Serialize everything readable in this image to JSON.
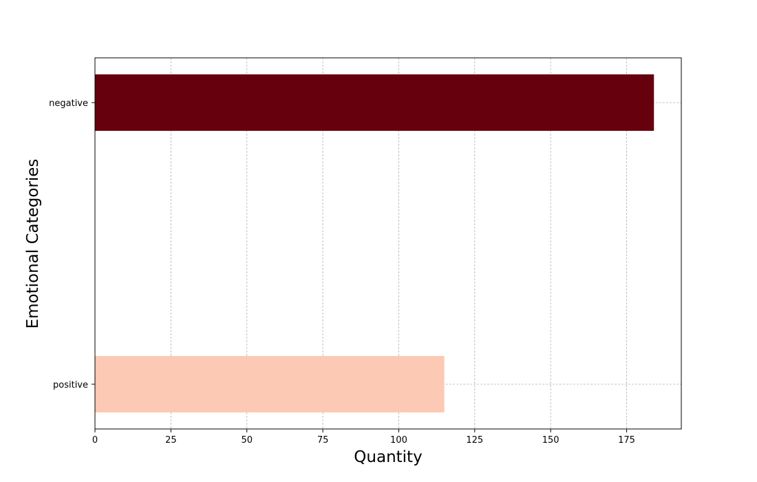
{
  "chart_data": {
    "type": "bar",
    "orientation": "horizontal",
    "title": "",
    "xlabel": "Quantity",
    "ylabel": "Emotional Categories",
    "categories": [
      "negative",
      "positive"
    ],
    "values": [
      184,
      115
    ],
    "bar_colors": [
      "#67000d",
      "#fcc9b5"
    ],
    "xlim": [
      0,
      193
    ],
    "xticks": [
      0,
      25,
      50,
      75,
      100,
      125,
      150,
      175
    ],
    "grid": true,
    "legend": "none"
  }
}
